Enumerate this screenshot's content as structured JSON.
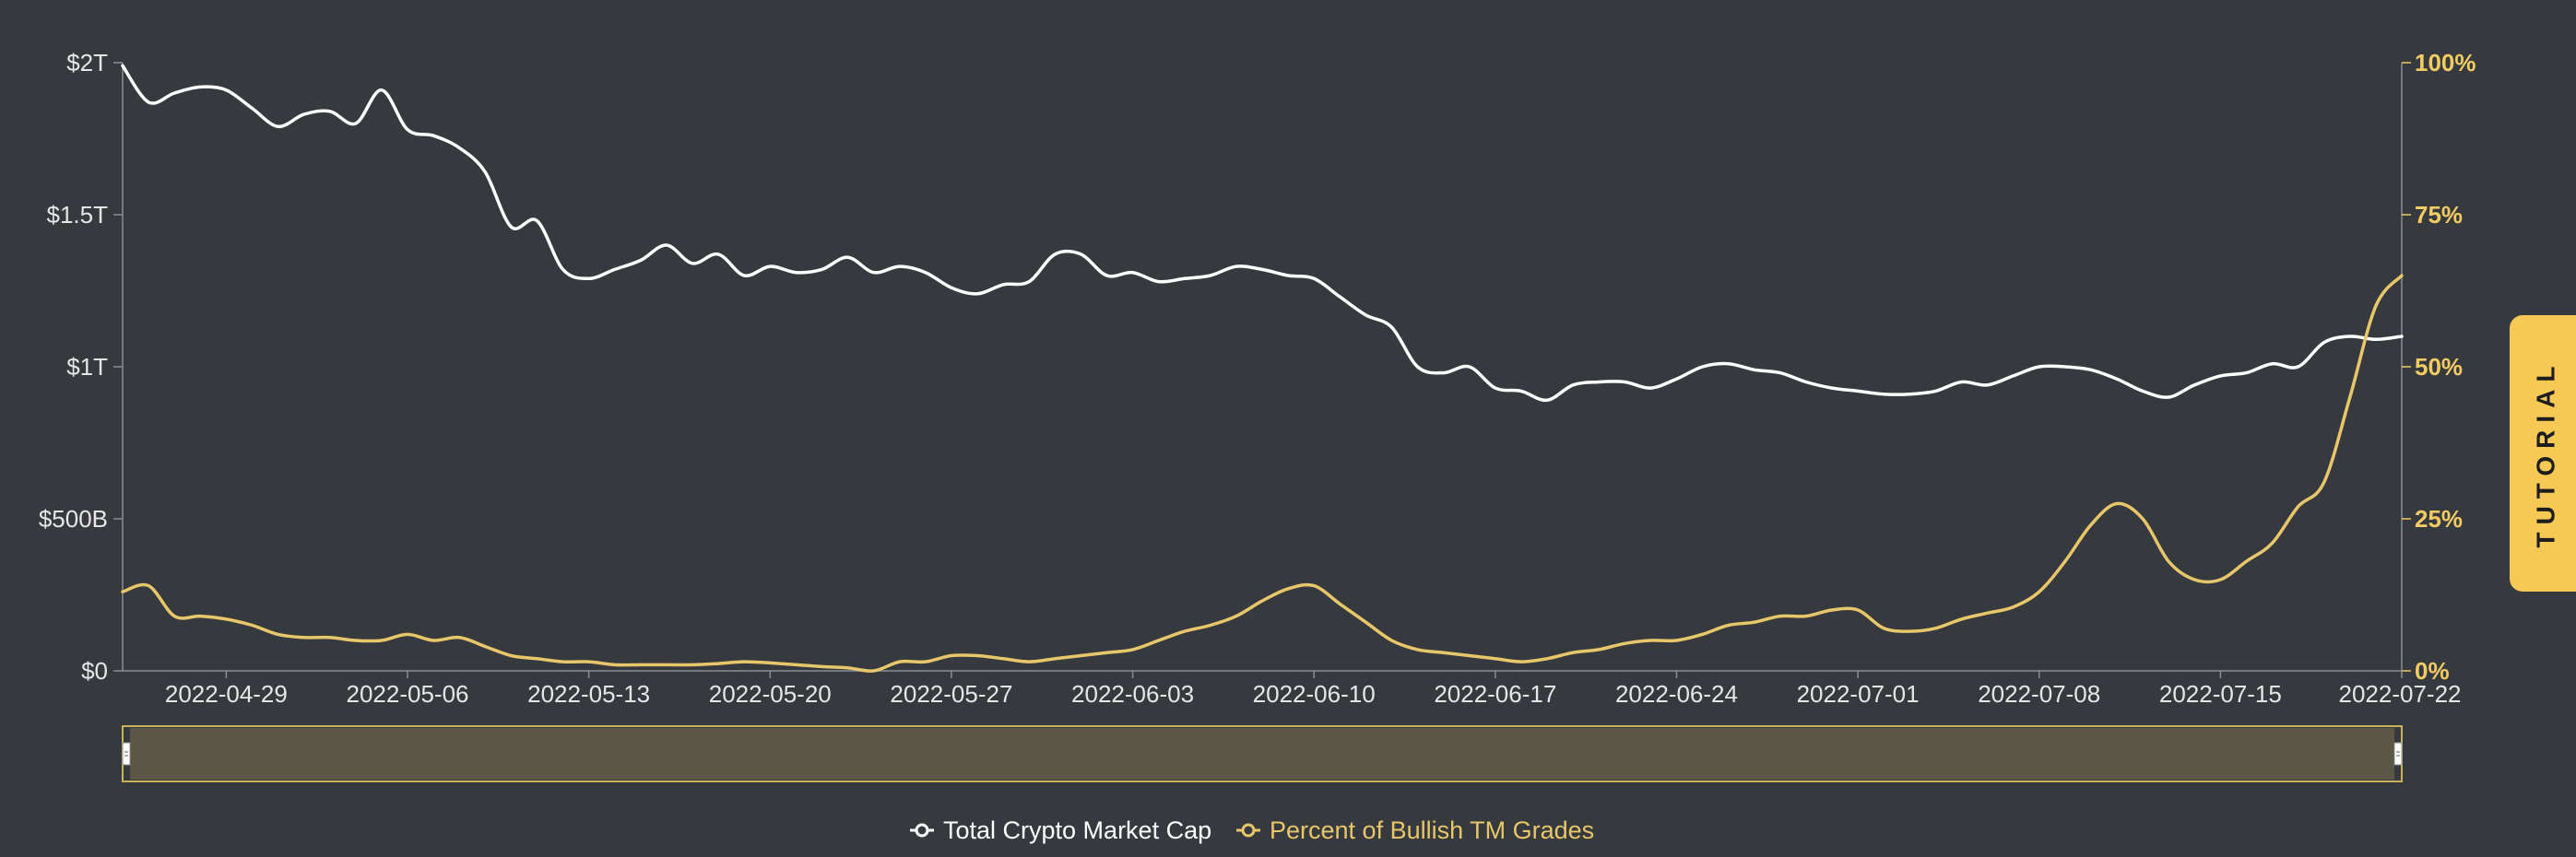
{
  "tutorial_label": "TUTORIAL",
  "colors": {
    "background": "#363a3f",
    "market_cap_line": "#ffffff",
    "bullish_line": "#e8c66a",
    "right_axis": "#f2cb64",
    "navigator_fill": "#5a5747",
    "navigator_border": "#c9b25a"
  },
  "chart_data": {
    "type": "line",
    "x_tick_labels": [
      "2022-04-29",
      "2022-05-06",
      "2022-05-13",
      "2022-05-20",
      "2022-05-27",
      "2022-06-03",
      "2022-06-10",
      "2022-06-17",
      "2022-06-24",
      "2022-07-01",
      "2022-07-08",
      "2022-07-15",
      "2022-07-22"
    ],
    "x_range": [
      "2022-04-25",
      "2022-07-22"
    ],
    "left_axis": {
      "ticks": [
        "$0",
        "$500B",
        "$1T",
        "$1.5T",
        "$2T"
      ],
      "range": [
        0,
        2000
      ]
    },
    "right_axis": {
      "ticks": [
        "0%",
        "25%",
        "50%",
        "75%",
        "100%"
      ],
      "range": [
        0,
        100
      ]
    },
    "legend": [
      "Total Crypto Market Cap",
      "Percent of Bullish TM Grades"
    ],
    "series": [
      {
        "name": "Total Crypto Market Cap",
        "unit": "$B",
        "axis": "left",
        "points": [
          [
            "2022-04-25",
            1990
          ],
          [
            "2022-04-26",
            1870
          ],
          [
            "2022-04-27",
            1900
          ],
          [
            "2022-04-28",
            1920
          ],
          [
            "2022-04-29",
            1910
          ],
          [
            "2022-04-30",
            1850
          ],
          [
            "2022-05-01",
            1790
          ],
          [
            "2022-05-02",
            1830
          ],
          [
            "2022-05-03",
            1840
          ],
          [
            "2022-05-04",
            1800
          ],
          [
            "2022-05-05",
            1910
          ],
          [
            "2022-05-06",
            1780
          ],
          [
            "2022-05-07",
            1760
          ],
          [
            "2022-05-08",
            1720
          ],
          [
            "2022-05-09",
            1640
          ],
          [
            "2022-05-10",
            1460
          ],
          [
            "2022-05-11",
            1480
          ],
          [
            "2022-05-12",
            1320
          ],
          [
            "2022-05-13",
            1290
          ],
          [
            "2022-05-14",
            1320
          ],
          [
            "2022-05-15",
            1350
          ],
          [
            "2022-05-16",
            1400
          ],
          [
            "2022-05-17",
            1340
          ],
          [
            "2022-05-18",
            1370
          ],
          [
            "2022-05-19",
            1300
          ],
          [
            "2022-05-20",
            1330
          ],
          [
            "2022-05-21",
            1310
          ],
          [
            "2022-05-22",
            1320
          ],
          [
            "2022-05-23",
            1360
          ],
          [
            "2022-05-24",
            1310
          ],
          [
            "2022-05-25",
            1330
          ],
          [
            "2022-05-26",
            1310
          ],
          [
            "2022-05-27",
            1260
          ],
          [
            "2022-05-28",
            1240
          ],
          [
            "2022-05-29",
            1270
          ],
          [
            "2022-05-30",
            1280
          ],
          [
            "2022-05-31",
            1370
          ],
          [
            "2022-06-01",
            1370
          ],
          [
            "2022-06-02",
            1300
          ],
          [
            "2022-06-03",
            1310
          ],
          [
            "2022-06-04",
            1280
          ],
          [
            "2022-06-05",
            1290
          ],
          [
            "2022-06-06",
            1300
          ],
          [
            "2022-06-07",
            1330
          ],
          [
            "2022-06-08",
            1320
          ],
          [
            "2022-06-09",
            1300
          ],
          [
            "2022-06-10",
            1290
          ],
          [
            "2022-06-11",
            1230
          ],
          [
            "2022-06-12",
            1170
          ],
          [
            "2022-06-13",
            1130
          ],
          [
            "2022-06-14",
            1000
          ],
          [
            "2022-06-15",
            980
          ],
          [
            "2022-06-16",
            1000
          ],
          [
            "2022-06-17",
            930
          ],
          [
            "2022-06-18",
            920
          ],
          [
            "2022-06-19",
            890
          ],
          [
            "2022-06-20",
            940
          ],
          [
            "2022-06-21",
            950
          ],
          [
            "2022-06-22",
            950
          ],
          [
            "2022-06-23",
            930
          ],
          [
            "2022-06-24",
            960
          ],
          [
            "2022-06-25",
            1000
          ],
          [
            "2022-06-26",
            1010
          ],
          [
            "2022-06-27",
            990
          ],
          [
            "2022-06-28",
            980
          ],
          [
            "2022-06-29",
            950
          ],
          [
            "2022-06-30",
            930
          ],
          [
            "2022-07-01",
            920
          ],
          [
            "2022-07-02",
            910
          ],
          [
            "2022-07-03",
            910
          ],
          [
            "2022-07-04",
            920
          ],
          [
            "2022-07-05",
            950
          ],
          [
            "2022-07-06",
            940
          ],
          [
            "2022-07-07",
            970
          ],
          [
            "2022-07-08",
            1000
          ],
          [
            "2022-07-09",
            1000
          ],
          [
            "2022-07-10",
            990
          ],
          [
            "2022-07-11",
            960
          ],
          [
            "2022-07-12",
            920
          ],
          [
            "2022-07-13",
            900
          ],
          [
            "2022-07-14",
            940
          ],
          [
            "2022-07-15",
            970
          ],
          [
            "2022-07-16",
            980
          ],
          [
            "2022-07-17",
            1010
          ],
          [
            "2022-07-18",
            1000
          ],
          [
            "2022-07-19",
            1080
          ],
          [
            "2022-07-20",
            1100
          ],
          [
            "2022-07-21",
            1090
          ],
          [
            "2022-07-22",
            1100
          ]
        ]
      },
      {
        "name": "Percent of Bullish TM Grades",
        "unit": "%",
        "axis": "right",
        "points": [
          [
            "2022-04-25",
            13
          ],
          [
            "2022-04-26",
            14
          ],
          [
            "2022-04-27",
            9
          ],
          [
            "2022-04-28",
            9
          ],
          [
            "2022-04-29",
            8.5
          ],
          [
            "2022-04-30",
            7.5
          ],
          [
            "2022-05-01",
            6
          ],
          [
            "2022-05-02",
            5.5
          ],
          [
            "2022-05-03",
            5.5
          ],
          [
            "2022-05-04",
            5
          ],
          [
            "2022-05-05",
            5
          ],
          [
            "2022-05-06",
            6
          ],
          [
            "2022-05-07",
            5
          ],
          [
            "2022-05-08",
            5.5
          ],
          [
            "2022-05-09",
            4
          ],
          [
            "2022-05-10",
            2.5
          ],
          [
            "2022-05-11",
            2
          ],
          [
            "2022-05-12",
            1.5
          ],
          [
            "2022-05-13",
            1.5
          ],
          [
            "2022-05-14",
            1
          ],
          [
            "2022-05-15",
            1
          ],
          [
            "2022-05-16",
            1
          ],
          [
            "2022-05-17",
            1
          ],
          [
            "2022-05-18",
            1.2
          ],
          [
            "2022-05-19",
            1.5
          ],
          [
            "2022-05-20",
            1.3
          ],
          [
            "2022-05-21",
            1
          ],
          [
            "2022-05-22",
            0.7
          ],
          [
            "2022-05-23",
            0.5
          ],
          [
            "2022-05-24",
            0
          ],
          [
            "2022-05-25",
            1.5
          ],
          [
            "2022-05-26",
            1.5
          ],
          [
            "2022-05-27",
            2.5
          ],
          [
            "2022-05-28",
            2.5
          ],
          [
            "2022-05-29",
            2
          ],
          [
            "2022-05-30",
            1.5
          ],
          [
            "2022-05-31",
            2
          ],
          [
            "2022-06-01",
            2.5
          ],
          [
            "2022-06-02",
            3
          ],
          [
            "2022-06-03",
            3.5
          ],
          [
            "2022-06-04",
            5
          ],
          [
            "2022-06-05",
            6.5
          ],
          [
            "2022-06-06",
            7.5
          ],
          [
            "2022-06-07",
            9
          ],
          [
            "2022-06-08",
            11.5
          ],
          [
            "2022-06-09",
            13.5
          ],
          [
            "2022-06-10",
            14
          ],
          [
            "2022-06-11",
            11
          ],
          [
            "2022-06-12",
            8
          ],
          [
            "2022-06-13",
            5
          ],
          [
            "2022-06-14",
            3.5
          ],
          [
            "2022-06-15",
            3
          ],
          [
            "2022-06-16",
            2.5
          ],
          [
            "2022-06-17",
            2
          ],
          [
            "2022-06-18",
            1.5
          ],
          [
            "2022-06-19",
            2
          ],
          [
            "2022-06-20",
            3
          ],
          [
            "2022-06-21",
            3.5
          ],
          [
            "2022-06-22",
            4.5
          ],
          [
            "2022-06-23",
            5
          ],
          [
            "2022-06-24",
            5
          ],
          [
            "2022-06-25",
            6
          ],
          [
            "2022-06-26",
            7.5
          ],
          [
            "2022-06-27",
            8
          ],
          [
            "2022-06-28",
            9
          ],
          [
            "2022-06-29",
            9
          ],
          [
            "2022-06-30",
            10
          ],
          [
            "2022-07-01",
            10
          ],
          [
            "2022-07-02",
            7
          ],
          [
            "2022-07-03",
            6.5
          ],
          [
            "2022-07-04",
            7
          ],
          [
            "2022-07-05",
            8.5
          ],
          [
            "2022-07-06",
            9.5
          ],
          [
            "2022-07-07",
            10.5
          ],
          [
            "2022-07-08",
            13
          ],
          [
            "2022-07-09",
            18
          ],
          [
            "2022-07-10",
            24
          ],
          [
            "2022-07-11",
            27.5
          ],
          [
            "2022-07-12",
            25
          ],
          [
            "2022-07-13",
            18
          ],
          [
            "2022-07-14",
            15
          ],
          [
            "2022-07-15",
            15
          ],
          [
            "2022-07-16",
            18
          ],
          [
            "2022-07-17",
            21
          ],
          [
            "2022-07-18",
            27
          ],
          [
            "2022-07-19",
            31
          ],
          [
            "2022-07-20",
            45
          ],
          [
            "2022-07-21",
            60
          ],
          [
            "2022-07-22",
            65
          ]
        ]
      }
    ],
    "grid": false,
    "legend_position": "bottom-center",
    "navigator": true
  }
}
